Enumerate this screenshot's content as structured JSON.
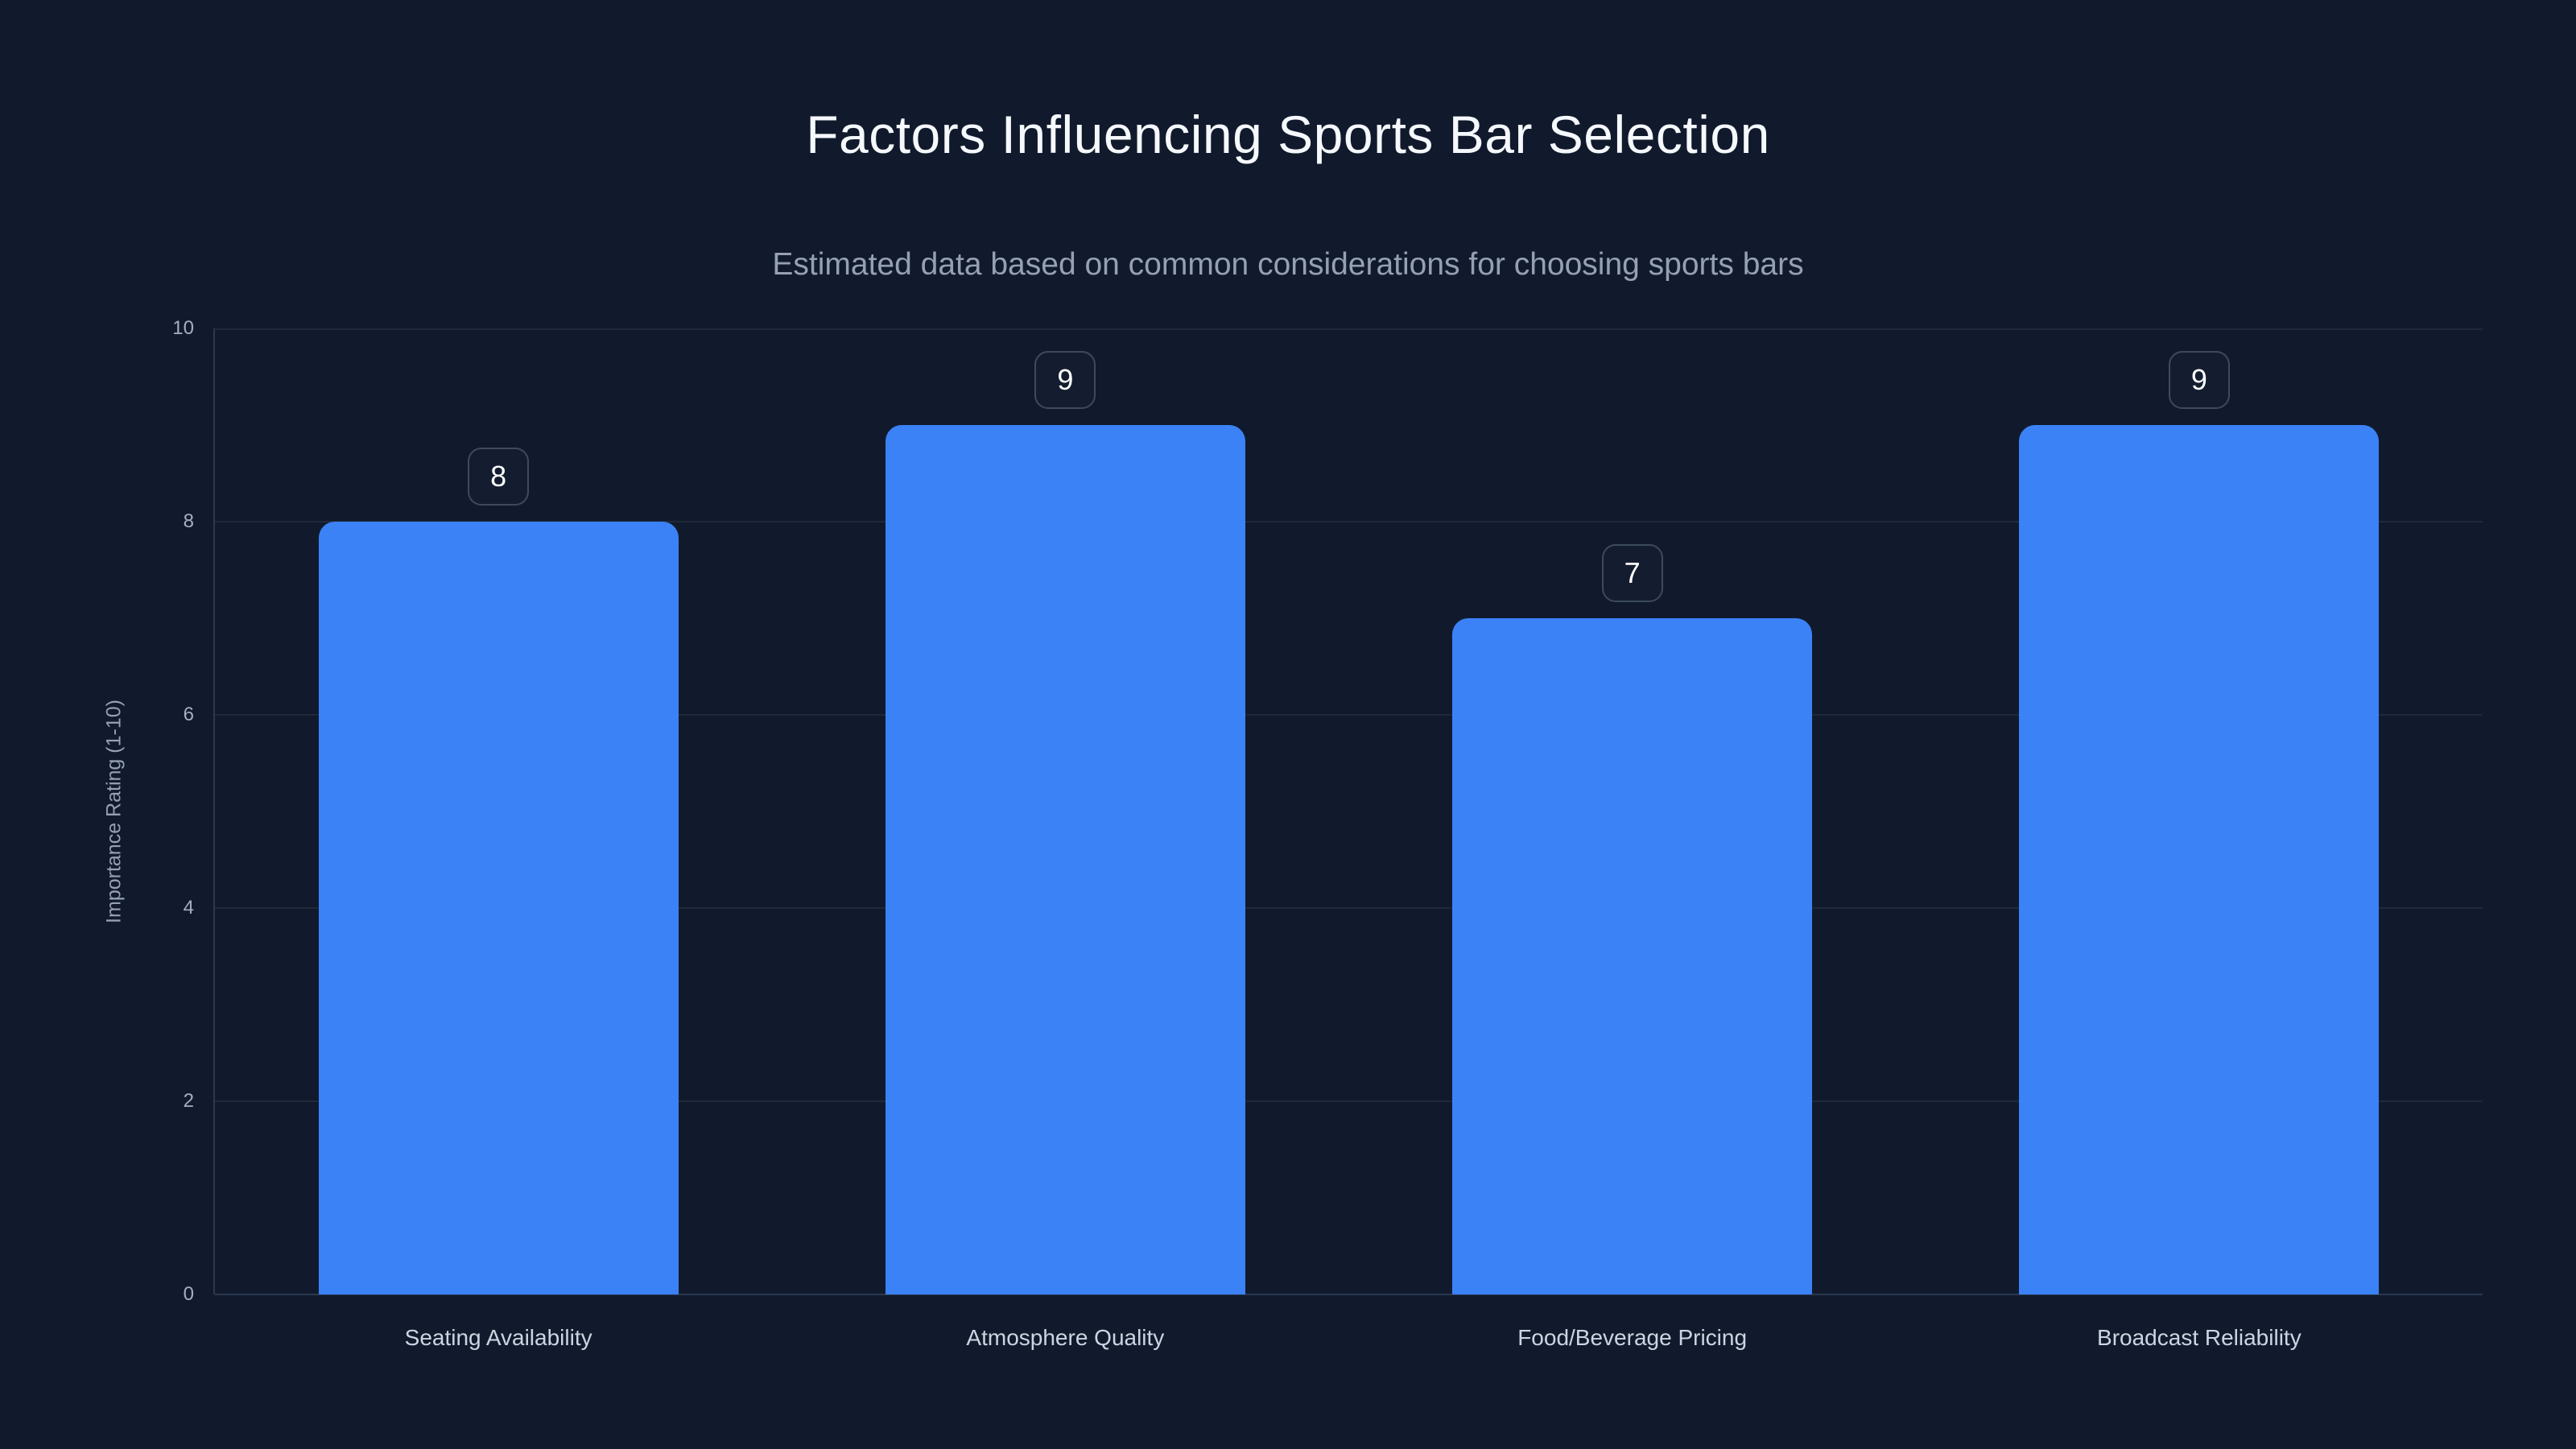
{
  "chart_data": {
    "type": "bar",
    "title": "Factors Influencing Sports Bar Selection",
    "subtitle": "Estimated data based on common considerations for choosing sports bars",
    "categories": [
      "Seating Availability",
      "Atmosphere Quality",
      "Food/Beverage Pricing",
      "Broadcast Reliability"
    ],
    "values": [
      8,
      9,
      7,
      9
    ],
    "data_labels": [
      "8",
      "9",
      "7",
      "9"
    ],
    "xlabel": "",
    "ylabel": "Importance Rating (1-10)",
    "ylim": [
      0,
      10
    ],
    "yticks": [
      0,
      2,
      4,
      6,
      8,
      10
    ],
    "grid": "horizontal-only",
    "legend": "none",
    "bar_corner_radius": 20,
    "colors": {
      "background": "#111a2c",
      "bar": "#3b82f6",
      "gridline": "#1f2939",
      "axis_line": "#2c3850",
      "title_text": "#f5f8fc",
      "subtitle_text": "#94a1b3",
      "tick_text": "#a3b0c2",
      "category_text": "#cbd5e1",
      "value_text": "#ffffff",
      "value_badge_border": "#3d4a5e"
    }
  }
}
